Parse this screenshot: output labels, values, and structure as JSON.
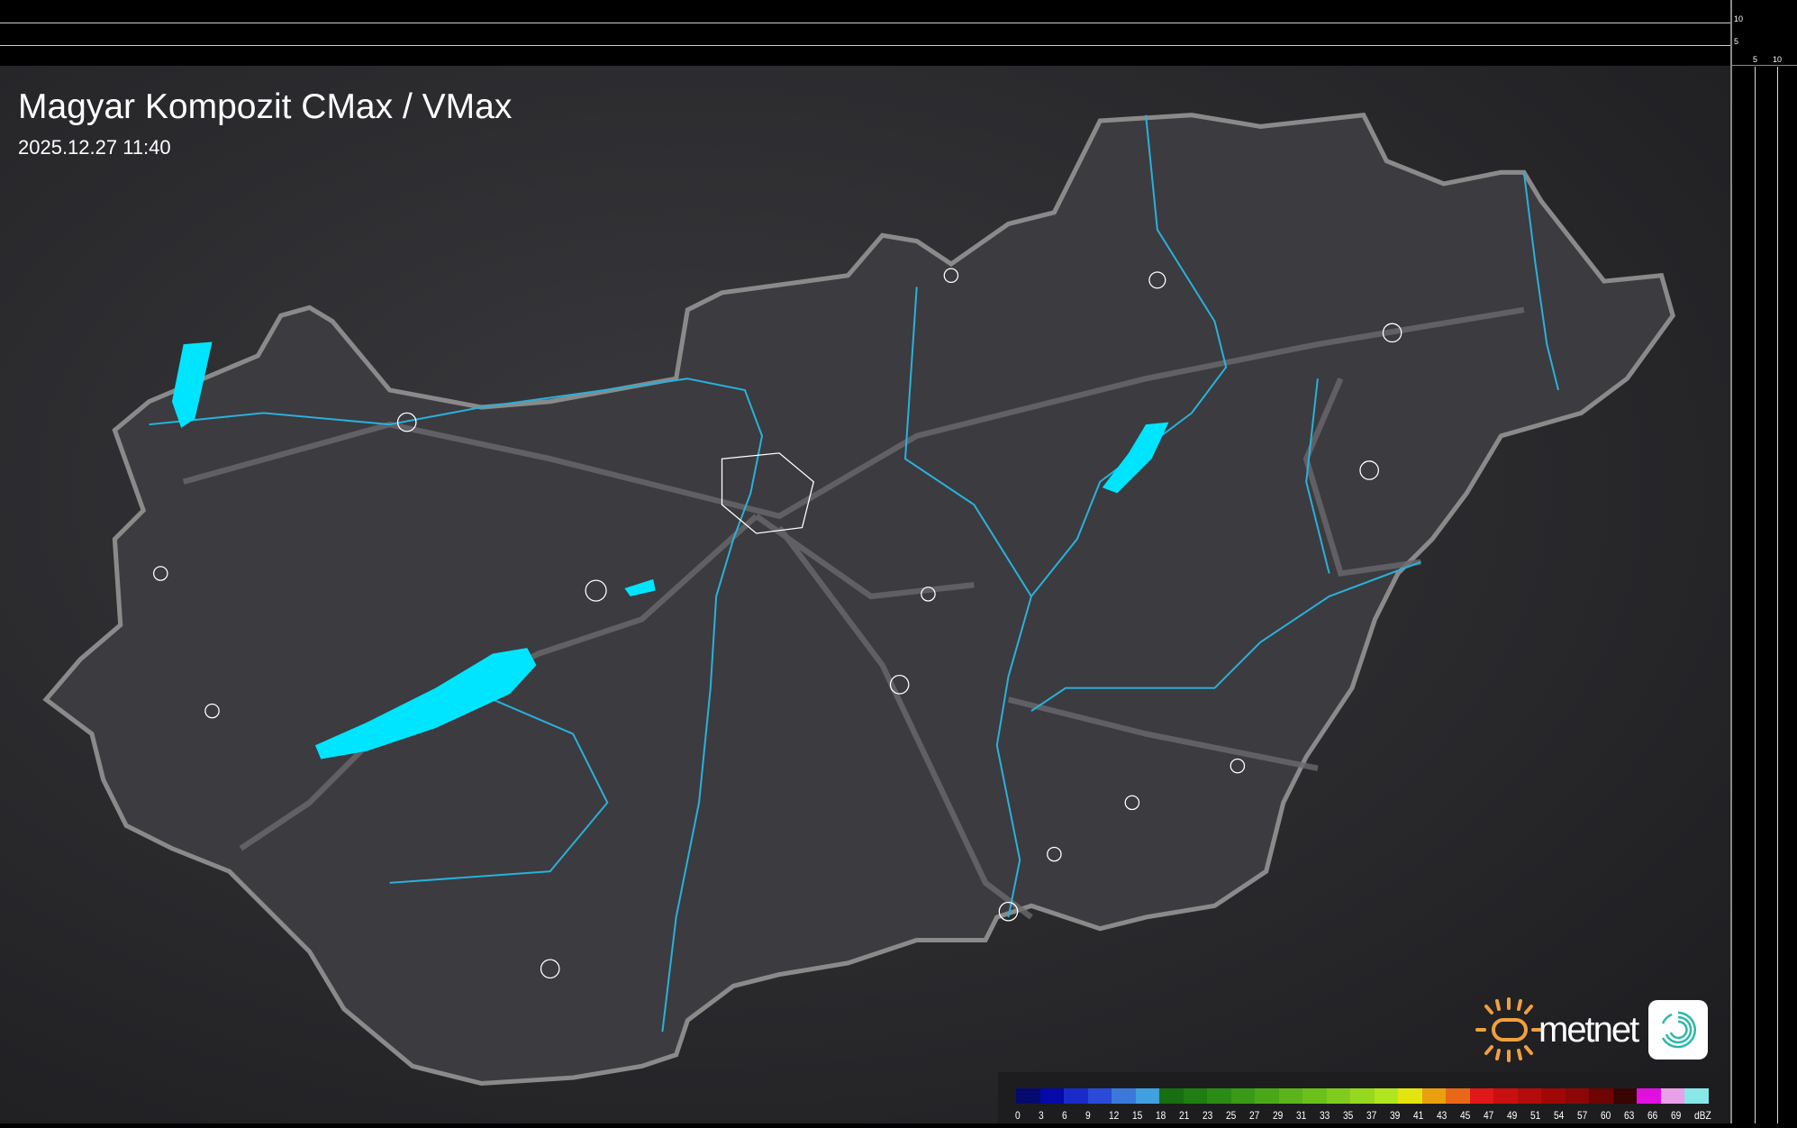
{
  "header": {
    "title": "Magyar Kompozit CMax / VMax",
    "datetime": "2025.12.27 11:40"
  },
  "scale": {
    "vertical": [
      "10",
      "5"
    ],
    "horizontal": [
      "5",
      "10"
    ]
  },
  "legend": {
    "unit": "dBZ",
    "labels": [
      "0",
      "3",
      "6",
      "9",
      "12",
      "15",
      "18",
      "21",
      "23",
      "25",
      "27",
      "29",
      "31",
      "33",
      "35",
      "37",
      "39",
      "41",
      "43",
      "45",
      "47",
      "49",
      "51",
      "54",
      "57",
      "60",
      "63",
      "66",
      "69"
    ],
    "colors": [
      "#050a6e",
      "#0509a8",
      "#1a2ac8",
      "#2a4ad8",
      "#3a78dc",
      "#40a0e0",
      "#186e10",
      "#1e7e12",
      "#2a8c14",
      "#3a9a16",
      "#4aa818",
      "#5ab41a",
      "#6cc01c",
      "#80cc1e",
      "#96d820",
      "#b0e620",
      "#e4e410",
      "#e8a010",
      "#e86818",
      "#e01818",
      "#c81010",
      "#b40c0c",
      "#a00808",
      "#8c0606",
      "#6e0404",
      "#380404",
      "#e010e0",
      "#e8a0e8",
      "#88e8e8"
    ]
  },
  "branding": {
    "logo_text": "metnet",
    "accent": "#f0a040",
    "icon": "metnet-swirl-icon"
  },
  "colors": {
    "lakes": "#00e5ff",
    "rivers": "#2ab0d8",
    "border": "#808080"
  }
}
